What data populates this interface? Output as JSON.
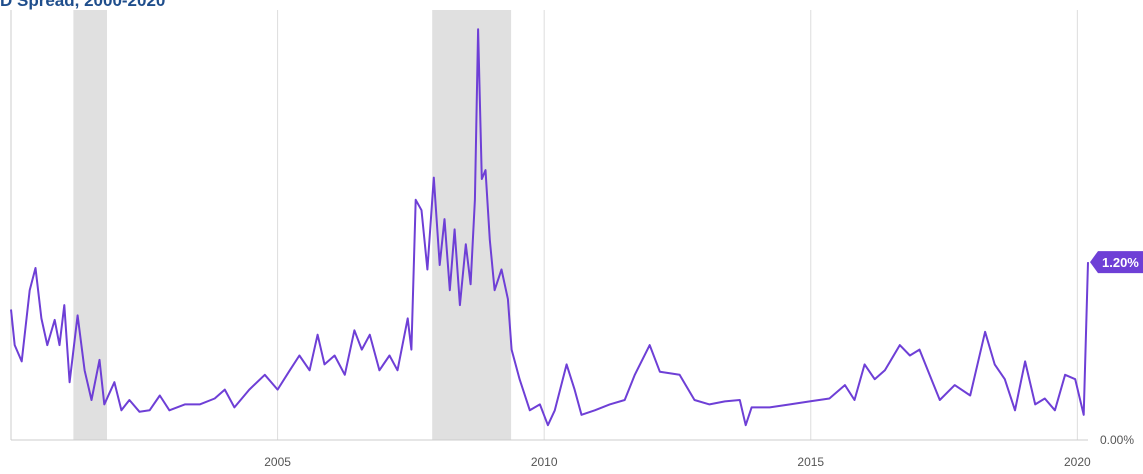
{
  "chart_data": {
    "type": "line",
    "title": "D Spread, 2000-2020",
    "xlim": [
      2000,
      2020.2
    ],
    "xticks": [
      2005,
      2010,
      2015,
      2020
    ],
    "ylim": [
      0,
      2.9
    ],
    "yticks": [
      {
        "value": 0,
        "label": "0.00%"
      }
    ],
    "grid": true,
    "recessions": [
      [
        2001.17,
        2001.8
      ],
      [
        2007.9,
        2009.38
      ]
    ],
    "end_label": {
      "value": 1.2,
      "label": "1.20%"
    },
    "series": [
      {
        "name": "TED Spread",
        "color": "#6e3fd6",
        "x": [
          2000.0,
          2000.07,
          2000.2,
          2000.35,
          2000.46,
          2000.57,
          2000.68,
          2000.82,
          2000.91,
          2001.0,
          2001.1,
          2001.25,
          2001.38,
          2001.51,
          2001.66,
          2001.75,
          2001.94,
          2002.07,
          2002.22,
          2002.41,
          2002.6,
          2002.79,
          2002.97,
          2003.26,
          2003.54,
          2003.82,
          2004.01,
          2004.19,
          2004.47,
          2004.76,
          2005.0,
          2005.23,
          2005.41,
          2005.6,
          2005.75,
          2005.88,
          2006.07,
          2006.26,
          2006.44,
          2006.58,
          2006.73,
          2006.91,
          2007.1,
          2007.25,
          2007.44,
          2007.51,
          2007.59,
          2007.7,
          2007.81,
          2007.93,
          2008.04,
          2008.13,
          2008.23,
          2008.32,
          2008.42,
          2008.53,
          2008.62,
          2008.7,
          2008.76,
          2008.83,
          2008.9,
          2008.98,
          2009.07,
          2009.2,
          2009.32,
          2009.39,
          2009.54,
          2009.73,
          2009.92,
          2010.07,
          2010.2,
          2010.42,
          2010.57,
          2010.7,
          2010.95,
          2011.23,
          2011.51,
          2011.7,
          2011.98,
          2012.17,
          2012.54,
          2012.82,
          2013.1,
          2013.39,
          2013.67,
          2013.78,
          2013.89,
          2014.23,
          2014.61,
          2014.98,
          2015.35,
          2015.64,
          2015.82,
          2016.01,
          2016.2,
          2016.39,
          2016.67,
          2016.86,
          2017.04,
          2017.23,
          2017.42,
          2017.7,
          2017.99,
          2018.27,
          2018.45,
          2018.64,
          2018.83,
          2019.02,
          2019.21,
          2019.39,
          2019.58,
          2019.77,
          2019.96,
          2020.12,
          2020.2
        ],
        "values": [
          0.88,
          0.64,
          0.53,
          1.01,
          1.16,
          0.82,
          0.64,
          0.81,
          0.64,
          0.91,
          0.39,
          0.84,
          0.47,
          0.27,
          0.54,
          0.24,
          0.39,
          0.2,
          0.27,
          0.19,
          0.2,
          0.3,
          0.2,
          0.24,
          0.24,
          0.28,
          0.34,
          0.22,
          0.34,
          0.44,
          0.34,
          0.47,
          0.57,
          0.47,
          0.71,
          0.51,
          0.57,
          0.44,
          0.74,
          0.61,
          0.71,
          0.47,
          0.57,
          0.47,
          0.82,
          0.61,
          1.62,
          1.55,
          1.15,
          1.77,
          1.18,
          1.49,
          1.01,
          1.42,
          0.91,
          1.32,
          1.05,
          1.62,
          2.77,
          1.76,
          1.82,
          1.35,
          1.01,
          1.15,
          0.95,
          0.61,
          0.41,
          0.2,
          0.24,
          0.1,
          0.2,
          0.51,
          0.34,
          0.17,
          0.2,
          0.24,
          0.27,
          0.44,
          0.64,
          0.46,
          0.44,
          0.27,
          0.24,
          0.26,
          0.27,
          0.1,
          0.22,
          0.22,
          0.24,
          0.26,
          0.28,
          0.37,
          0.27,
          0.51,
          0.41,
          0.47,
          0.64,
          0.57,
          0.61,
          0.44,
          0.27,
          0.37,
          0.3,
          0.73,
          0.51,
          0.41,
          0.2,
          0.53,
          0.24,
          0.28,
          0.2,
          0.44,
          0.41,
          0.17,
          1.2
        ]
      }
    ]
  }
}
